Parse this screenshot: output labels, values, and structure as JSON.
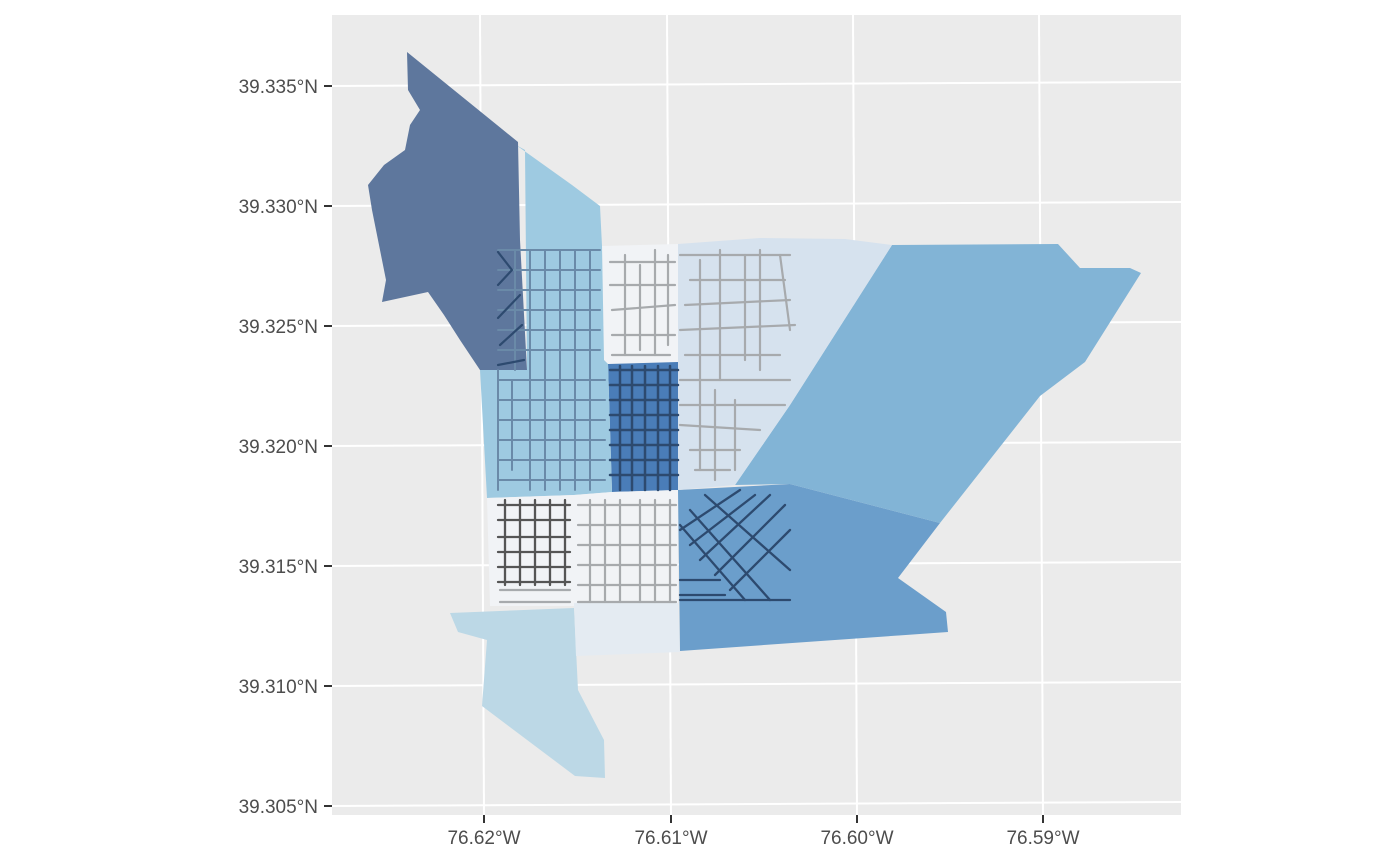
{
  "map": {
    "y_ticks": [
      "39.335°N",
      "39.330°N",
      "39.325°N",
      "39.320°N",
      "39.315°N",
      "39.310°N",
      "39.305°N"
    ],
    "x_ticks": [
      "76.62°W",
      "76.61°W",
      "76.60°W",
      "76.59°W"
    ],
    "colors": {
      "panel_background": "#ebebeb",
      "grid_line": "#ffffff",
      "fill_darkest": "#4a6591",
      "fill_dark": "#4a7db8",
      "fill_medium_dark": "#6b9ecb",
      "fill_medium": "#82b4d6",
      "fill_light": "#9ecae1",
      "fill_lighter": "#bcd8e6",
      "fill_pale": "#d6e2ee",
      "fill_palest": "#e4ebf2",
      "fill_white": "#f1f3f6",
      "road_light": "#a7aaad",
      "road_dark": "#2d4a6f",
      "road_charcoal": "#555555"
    },
    "layers": [
      "polygons",
      "roads"
    ]
  }
}
